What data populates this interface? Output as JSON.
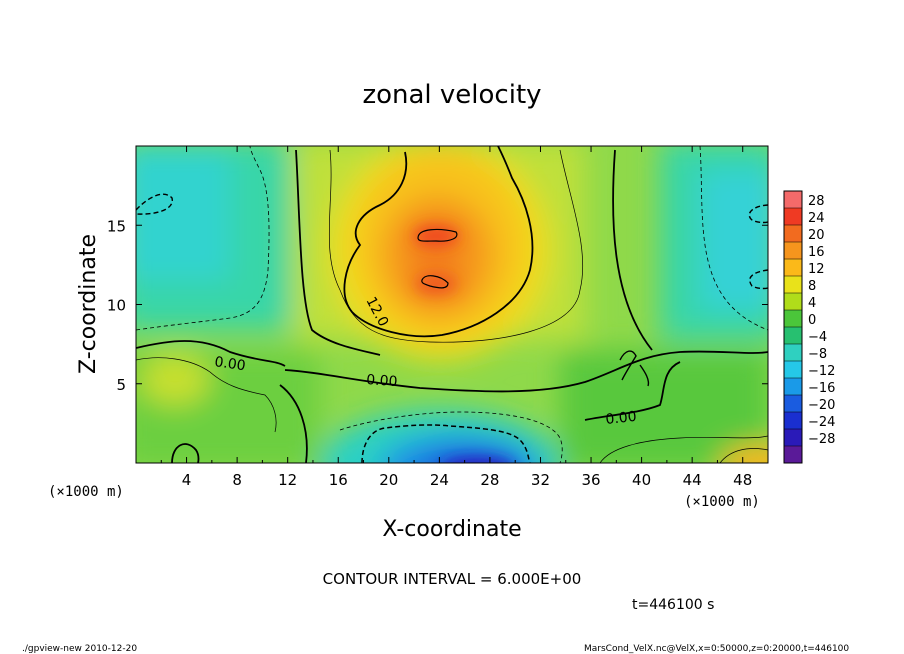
{
  "chart_data": {
    "type": "heatmap",
    "title": "zonal velocity",
    "xlabel": "X-coordinate",
    "ylabel": "Z-coordinate",
    "x_unit": "(×1000 m)",
    "x_ticks": [
      "4",
      "8",
      "12",
      "16",
      "20",
      "24",
      "28",
      "32",
      "36",
      "40",
      "44",
      "48"
    ],
    "y_ticks": [
      "5",
      "10",
      "15"
    ],
    "xlim": [
      0,
      50
    ],
    "ylim": [
      0,
      20
    ],
    "colorbar": {
      "labels": [
        "28",
        "24",
        "20",
        "16",
        "12",
        "8",
        "4",
        "0",
        "−4",
        "−8",
        "−12",
        "−16",
        "−20",
        "−24",
        "−28"
      ],
      "colors": [
        "#f46a6a",
        "#ef3a23",
        "#f26b1f",
        "#f6951d",
        "#fbb919",
        "#e9e21a",
        "#b0dd1a",
        "#4bc63a",
        "#27c070",
        "#2fd0c0",
        "#25c8e8",
        "#1a9ae8",
        "#1a5ce0",
        "#1a2fd0",
        "#2a1ab8",
        "#5a1a98"
      ]
    },
    "contour_labels": [
      "12.0",
      "0.00",
      "0.00",
      "0.00"
    ],
    "contour_interval": "CONTOUR INTERVAL = 6.000E+00",
    "time_label": "t=446100 s",
    "features": [
      {
        "name": "jet",
        "x": 24,
        "z": 14.5,
        "value": 20
      },
      {
        "name": "jet",
        "x": 24,
        "z": 11.5,
        "value": 19
      },
      {
        "name": "low-level-minimum",
        "x": 25,
        "z": 0.5,
        "value": -22
      },
      {
        "name": "upper-left-minimum",
        "x": 1,
        "z": 16.5,
        "value": -10
      },
      {
        "name": "upper-right-minimum",
        "x": 49,
        "z": 15.5,
        "value": -10
      },
      {
        "name": "surface-maximum",
        "x": 48.5,
        "z": 0.5,
        "value": 14
      }
    ]
  },
  "footer": {
    "left": "./gpview-new   2010-12-20",
    "right": "MarsCond_VelX.nc@VelX,x=0:50000,z=0:20000,t=446100"
  }
}
